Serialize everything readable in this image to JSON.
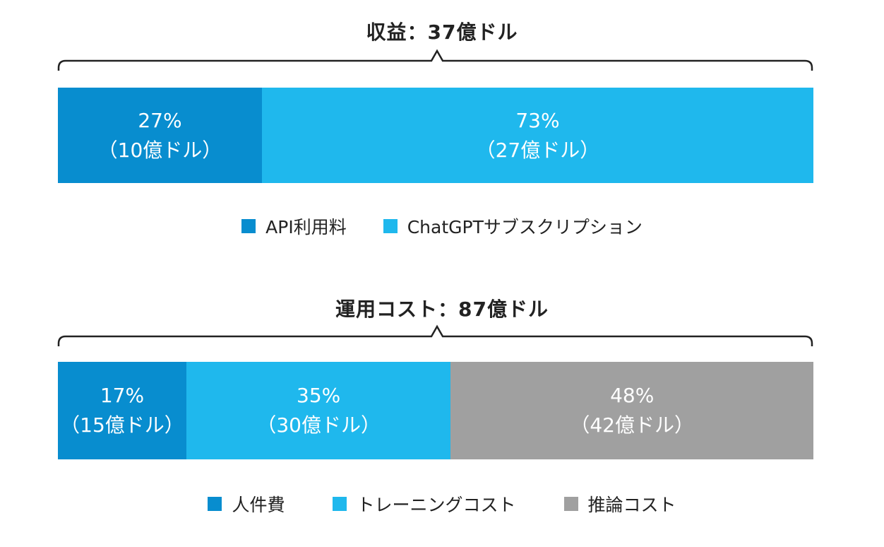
{
  "colors": {
    "dark_blue": "#088dcf",
    "light_blue": "#1fb8ed",
    "gray": "#a0a0a0",
    "text": "#222222",
    "brace": "#222222"
  },
  "chart_data": [
    {
      "type": "bar",
      "orientation": "horizontal-stacked",
      "title": "収益：37億ドル",
      "xlabel": "",
      "ylabel": "",
      "unit": "億ドル",
      "total": 37,
      "legend_position": "bottom",
      "grid": false,
      "series": [
        {
          "name": "API利用料",
          "percent": 27,
          "value": 10,
          "percent_label": "27%",
          "value_label": "（10億ドル）",
          "color": "#088dcf"
        },
        {
          "name": "ChatGPTサブスクリプション",
          "percent": 73,
          "value": 27,
          "percent_label": "73%",
          "value_label": "（27億ドル）",
          "color": "#1fb8ed"
        }
      ]
    },
    {
      "type": "bar",
      "orientation": "horizontal-stacked",
      "title": "運用コスト：87億ドル",
      "xlabel": "",
      "ylabel": "",
      "unit": "億ドル",
      "total": 87,
      "legend_position": "bottom",
      "grid": false,
      "series": [
        {
          "name": "人件費",
          "percent": 17,
          "value": 15,
          "percent_label": "17%",
          "value_label": "（15億ドル）",
          "color": "#088dcf"
        },
        {
          "name": "トレーニングコスト",
          "percent": 35,
          "value": 30,
          "percent_label": "35%",
          "value_label": "（30億ドル）",
          "color": "#1fb8ed"
        },
        {
          "name": "推論コスト",
          "percent": 48,
          "value": 42,
          "percent_label": "48%",
          "value_label": "（42億ドル）",
          "color": "#a0a0a0"
        }
      ]
    }
  ]
}
